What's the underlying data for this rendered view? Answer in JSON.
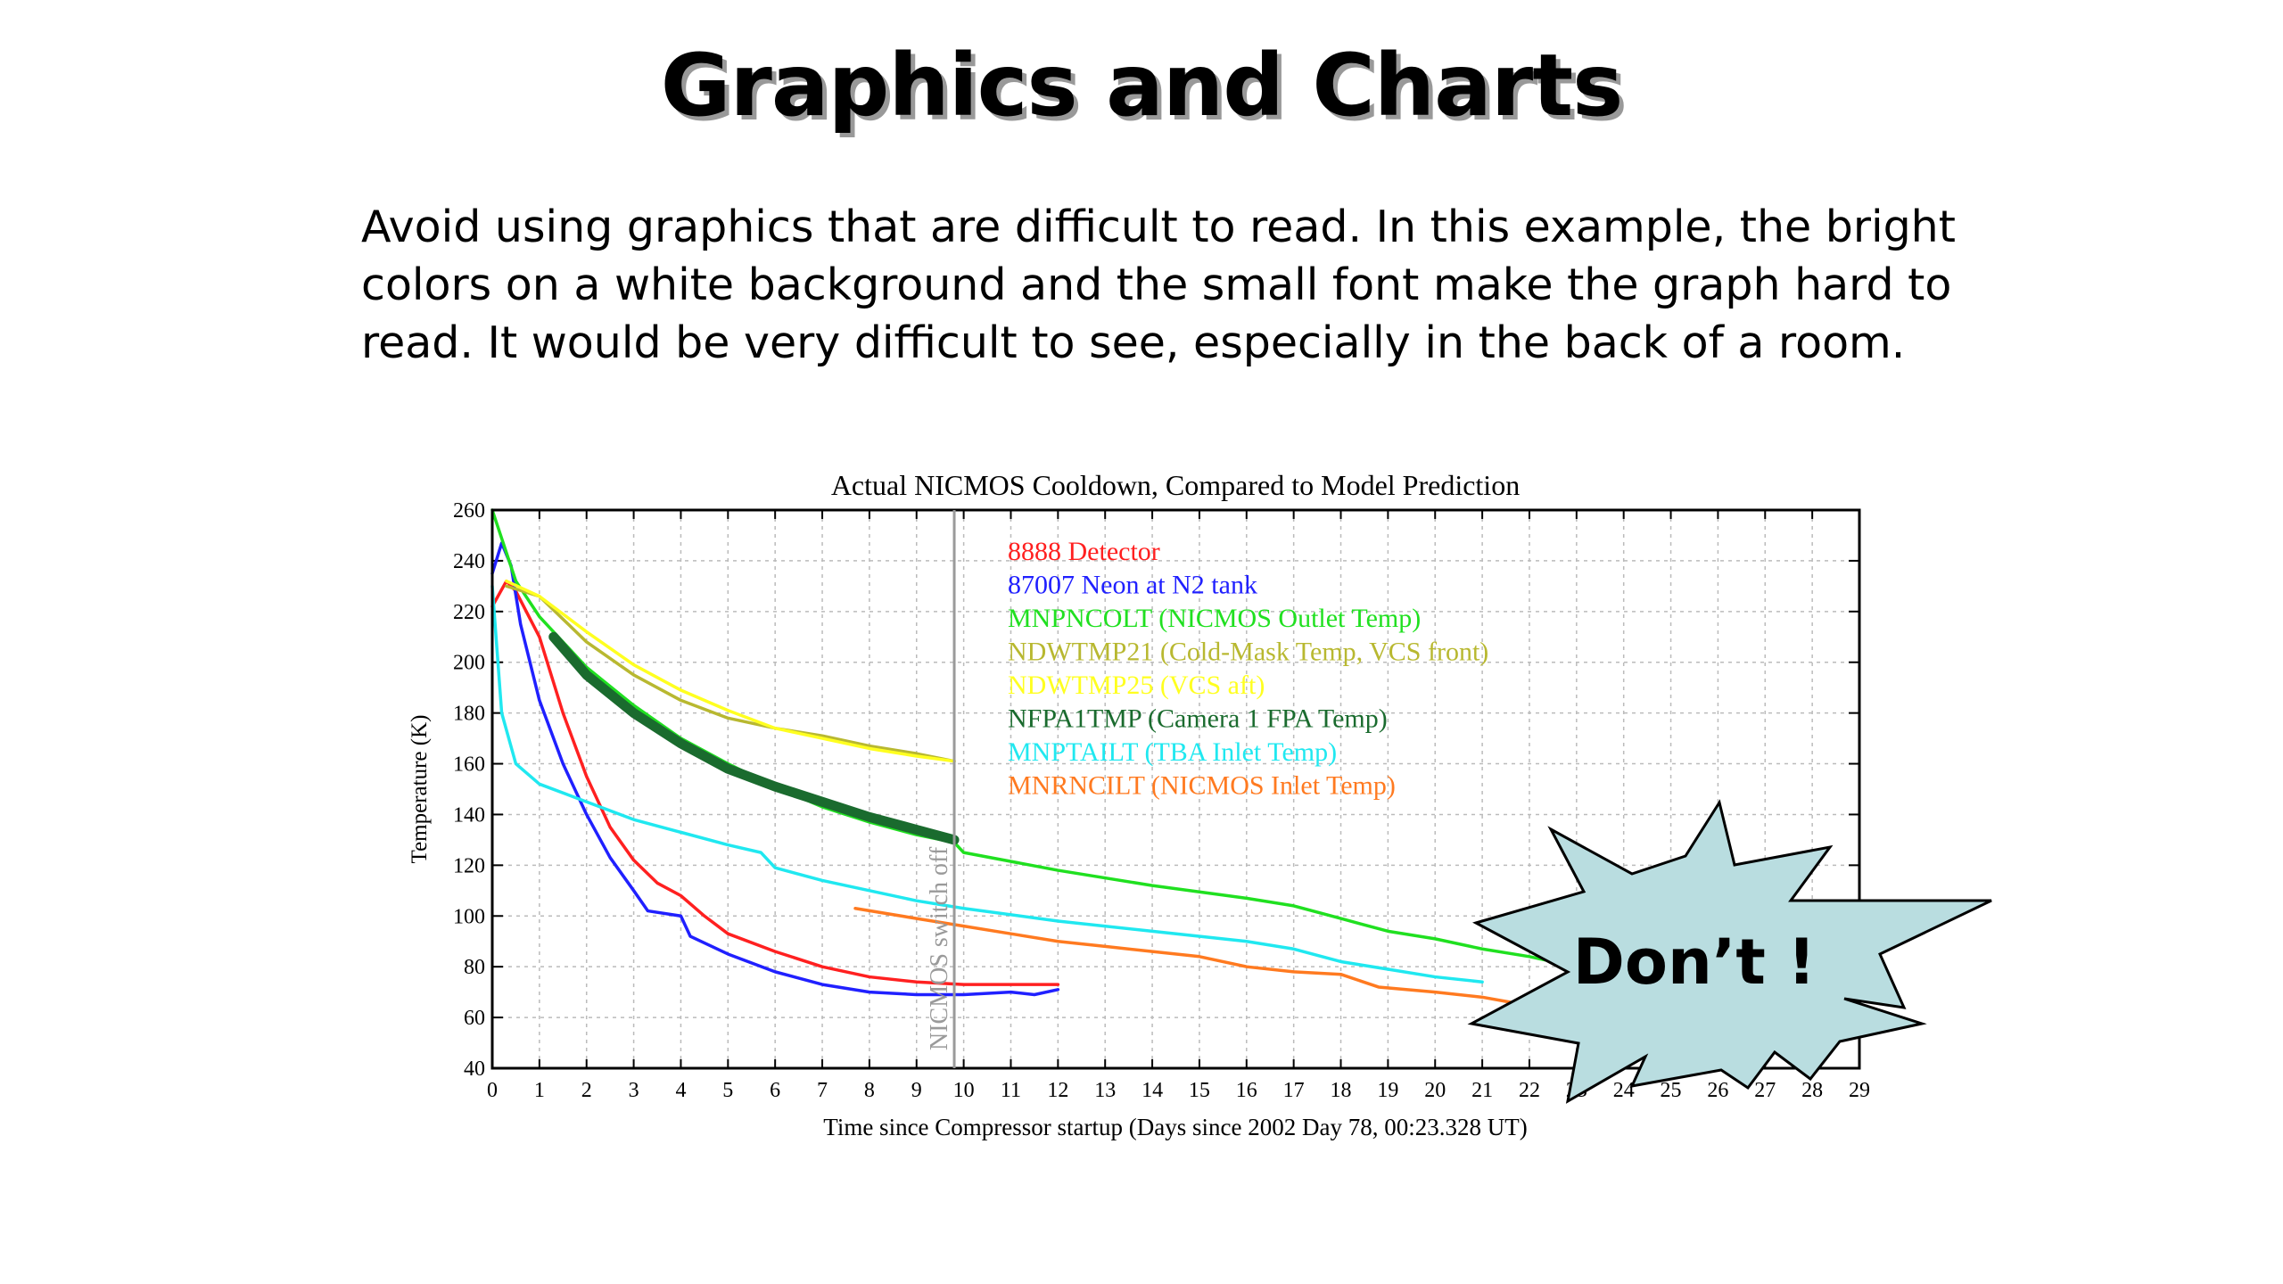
{
  "slide": {
    "title": "Graphics and Charts",
    "body_lines": [
      "Avoid using graphics that are difficult to read. In this example, the bright",
      "colors on a white background and the small font make the graph hard to",
      "read. It would be very difficult to see, especially in the back of a room."
    ],
    "callout": "Don’t !"
  },
  "chart_data": {
    "type": "line",
    "title": "Actual NICMOS Cooldown, Compared to Model Prediction",
    "xlabel": "Time since Compressor startup (Days since 2002 Day 78, 00:23.328 UT)",
    "ylabel": "Temperature (K)",
    "xlim": [
      0,
      29
    ],
    "ylim": [
      40,
      260
    ],
    "xticks": [
      0,
      1,
      2,
      3,
      4,
      5,
      6,
      7,
      8,
      9,
      10,
      11,
      12,
      13,
      14,
      15,
      16,
      17,
      18,
      19,
      20,
      21,
      22,
      23,
      24,
      25,
      26,
      27,
      28,
      29
    ],
    "yticks": [
      40,
      60,
      80,
      100,
      120,
      140,
      160,
      180,
      200,
      220,
      240,
      260
    ],
    "grid": true,
    "legend_position": "top-center",
    "annotations": [
      {
        "text": "NICMOS switch off",
        "x": 9.8
      }
    ],
    "series": [
      {
        "name": "8888 Detector",
        "color": "#ff2020",
        "x": [
          0,
          0.3,
          0.5,
          1,
          1.5,
          2,
          2.5,
          3,
          3.5,
          4,
          4.5,
          5,
          6,
          7,
          8,
          9,
          10,
          11,
          12
        ],
        "y": [
          222,
          232,
          228,
          210,
          180,
          155,
          135,
          122,
          113,
          108,
          100,
          93,
          86,
          80,
          76,
          74,
          73,
          73,
          73
        ]
      },
      {
        "name": "87007 Neon at N2 tank",
        "color": "#2020ff",
        "x": [
          0,
          0.2,
          0.4,
          0.6,
          1,
          1.5,
          2,
          2.5,
          3,
          3.3,
          4,
          4.2,
          5,
          6,
          7,
          8,
          9,
          10,
          11,
          11.5,
          12
        ],
        "y": [
          235,
          247,
          238,
          215,
          185,
          160,
          140,
          123,
          110,
          102,
          100,
          92,
          85,
          78,
          73,
          70,
          69,
          69,
          70,
          69,
          71
        ]
      },
      {
        "name": "MNPNCOLT (NICMOS Outlet Temp)",
        "color": "#20e020",
        "x": [
          0,
          0.5,
          1,
          2,
          3,
          4,
          5,
          6,
          7,
          8,
          9,
          9.8,
          10,
          12,
          14,
          16,
          17,
          18,
          19,
          20,
          21,
          22,
          22.5
        ],
        "y": [
          260,
          232,
          218,
          198,
          183,
          170,
          160,
          151,
          143,
          137,
          132,
          129,
          125,
          118,
          112,
          107,
          104,
          99,
          94,
          91,
          87,
          84,
          82
        ]
      },
      {
        "name": "NDWTMP21 (Cold-Mask Temp, VCS front)",
        "color": "#b8b830",
        "x": [
          0.3,
          1,
          2,
          3,
          4,
          5,
          6,
          7,
          8,
          9,
          9.8
        ],
        "y": [
          230,
          226,
          208,
          195,
          185,
          178,
          174,
          171,
          167,
          164,
          161
        ]
      },
      {
        "name": "NDWTMP25 (VCS aft)",
        "color": "#ffff20",
        "x": [
          0.3,
          1,
          2,
          3,
          4,
          5,
          6,
          7,
          8,
          9,
          9.8
        ],
        "y": [
          232,
          226,
          212,
          199,
          189,
          181,
          174,
          170,
          166,
          163,
          161
        ]
      },
      {
        "name": "NFPA1TMP (Camera 1 FPA Temp)",
        "color": "#1a6b2e",
        "x": [
          1.3,
          2,
          3,
          4,
          5,
          6,
          7,
          8,
          9,
          9.8
        ],
        "y": [
          210,
          195,
          180,
          168,
          158,
          151,
          145,
          139,
          134,
          130
        ]
      },
      {
        "name": "MNPTAILT (TBA Inlet Temp)",
        "color": "#20e8f0",
        "x": [
          0,
          0.2,
          0.5,
          1,
          2,
          3,
          4,
          5,
          5.7,
          6,
          7,
          8,
          9,
          10,
          12,
          14,
          16,
          17,
          18,
          19,
          20,
          21
        ],
        "y": [
          230,
          180,
          160,
          152,
          145,
          138,
          133,
          128,
          125,
          119,
          114,
          110,
          106,
          103,
          98,
          94,
          90,
          87,
          82,
          79,
          76,
          74
        ]
      },
      {
        "name": "MNRNCILT (NICMOS Inlet Temp)",
        "color": "#ff7a20",
        "x": [
          7.7,
          9,
          10,
          11,
          12,
          13,
          14,
          15,
          16,
          17,
          18,
          18.8,
          20,
          21,
          21.6
        ],
        "y": [
          103,
          99,
          96,
          93,
          90,
          88,
          86,
          84,
          80,
          78,
          77,
          72,
          70,
          68,
          66
        ]
      }
    ]
  }
}
